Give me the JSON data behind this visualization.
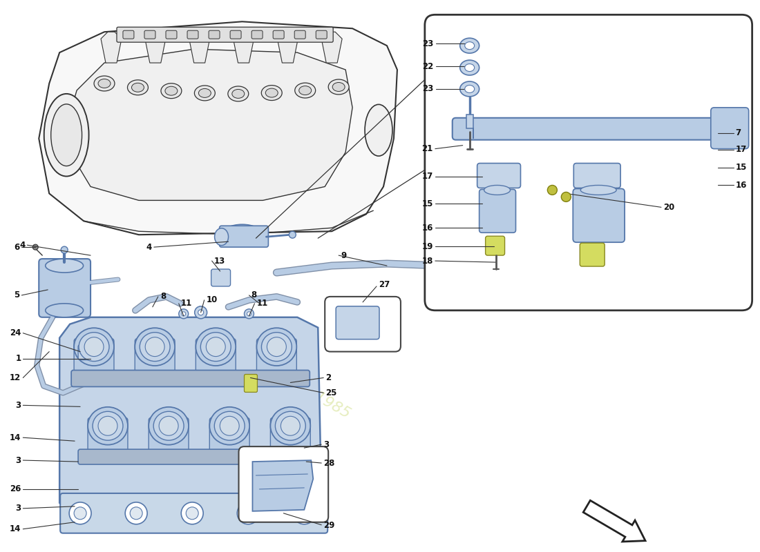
{
  "bg_color": "#ffffff",
  "line_color": "#333333",
  "thin_line": "#444444",
  "blue_fill": "#b8cce4",
  "blue_fill2": "#c5d5e8",
  "blue_dark": "#8090a8",
  "blue_stroke": "#5577aa",
  "yellow_fill": "#d4dc60",
  "white_fill": "#ffffff",
  "watermark_color": "#c8d870",
  "watermark_alpha": 0.45,
  "box_label_color": "#111111",
  "arrow_direction": [
    0.09,
    -0.06
  ]
}
